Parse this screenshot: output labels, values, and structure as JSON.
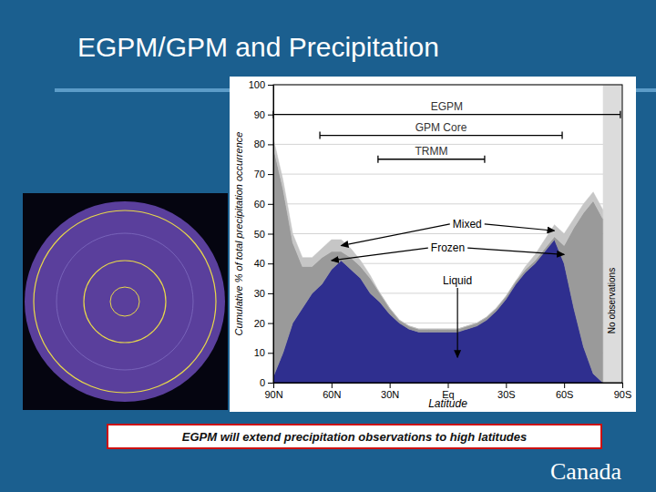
{
  "title": "EGPM/GPM and Precipitation",
  "caption": "EGPM will extend precipitation observations to high latitudes",
  "logo_text": "Canada",
  "chart_data": {
    "type": "area",
    "stacked": true,
    "grid": true,
    "x_label": "Latitude",
    "y_label": "Cumulative % of total precipitation occurrence",
    "xlim": [
      90,
      -90
    ],
    "xticks": [
      {
        "value": 90,
        "label": "90N"
      },
      {
        "value": 60,
        "label": "60N"
      },
      {
        "value": 30,
        "label": "30N"
      },
      {
        "value": 0,
        "label": "Eq"
      },
      {
        "value": -30,
        "label": "30S"
      },
      {
        "value": -60,
        "label": "60S"
      },
      {
        "value": -90,
        "label": "90S"
      }
    ],
    "ylim": [
      0,
      100
    ],
    "yticks": [
      0,
      10,
      20,
      30,
      40,
      50,
      60,
      70,
      80,
      90,
      100
    ],
    "x": [
      90,
      85,
      80,
      75,
      70,
      65,
      60,
      55,
      50,
      45,
      40,
      35,
      30,
      25,
      20,
      15,
      10,
      5,
      0,
      -5,
      -10,
      -15,
      -20,
      -25,
      -30,
      -35,
      -40,
      -45,
      -50,
      -55,
      -60,
      -65,
      -70,
      -75,
      -80,
      -85,
      -90
    ],
    "series": [
      {
        "name": "Liquid",
        "color": "#2f2f8f",
        "values": [
          2,
          10,
          20,
          25,
          30,
          33,
          38,
          41,
          38,
          35,
          30,
          27,
          23,
          20,
          18,
          17,
          17,
          17,
          17,
          17,
          18,
          19,
          21,
          24,
          28,
          33,
          37,
          40,
          44,
          48,
          40,
          25,
          12,
          3,
          0,
          null,
          null
        ]
      },
      {
        "name": "Frozen",
        "color": "#9a9a9a",
        "values": [
          77,
          55,
          27,
          14,
          9,
          9,
          6,
          3,
          4,
          4,
          5,
          3,
          2,
          1,
          1,
          1,
          1,
          1,
          1,
          1,
          1,
          1,
          1,
          1,
          1,
          1,
          1,
          1,
          1,
          1,
          6,
          27,
          45,
          58,
          55,
          null,
          null
        ]
      },
      {
        "name": "Mixed",
        "color": "#c6c6c6",
        "values": [
          3,
          3,
          3,
          3,
          3,
          3,
          4,
          4,
          3,
          2,
          1,
          0,
          0,
          0,
          0,
          0,
          0,
          0,
          0,
          0,
          0,
          0,
          0,
          0,
          0,
          0,
          1,
          2,
          3,
          4,
          4,
          3,
          3,
          3,
          3,
          null,
          null
        ]
      }
    ],
    "ranges": [
      {
        "name": "EGPM",
        "from": 90,
        "to": -89,
        "y": 90
      },
      {
        "name": "GPM Core",
        "from": 66,
        "to": -59,
        "y": 83
      },
      {
        "name": "TRMM",
        "from": 36,
        "to": -19,
        "y": 75
      }
    ],
    "annotations": [
      "No observations"
    ]
  }
}
